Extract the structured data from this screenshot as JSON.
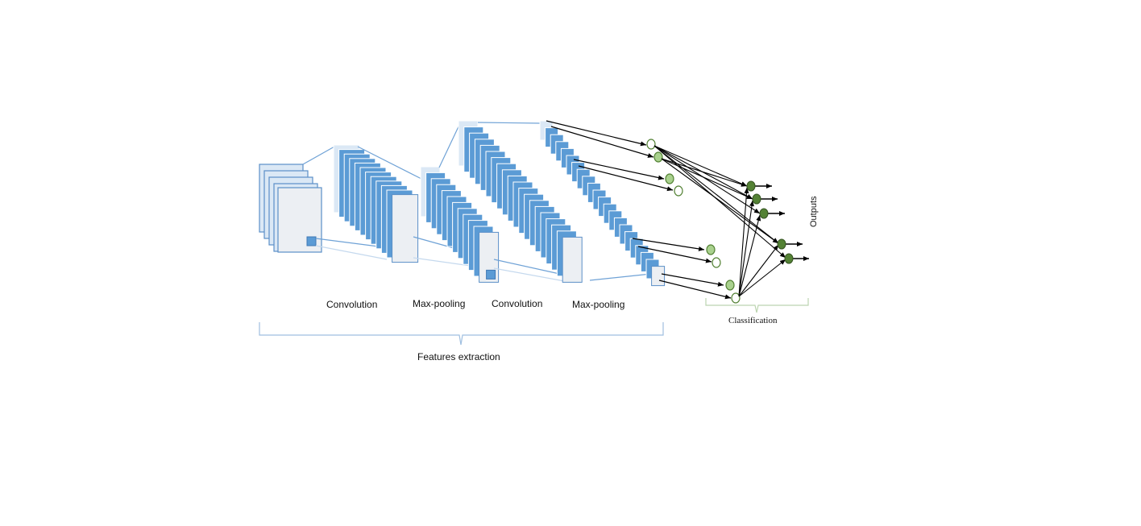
{
  "labels": {
    "conv1": "Convolution",
    "pool1": "Max-pooling",
    "conv2": "Convolution",
    "pool2": "Max-pooling",
    "features": "Features extraction",
    "classification": "Classification",
    "outputs": "Outputs"
  },
  "colors": {
    "map_fill": "#5b9bd5",
    "map_light": "#dbe8f5",
    "map_border": "#5b8fc7",
    "connector": "#6fa2d6",
    "brace": "#9fbfe0",
    "brace_green": "#bcd4b0",
    "neuron_light": "#a9d18e",
    "neuron_dark": "#548235",
    "arrow": "#000000"
  }
}
